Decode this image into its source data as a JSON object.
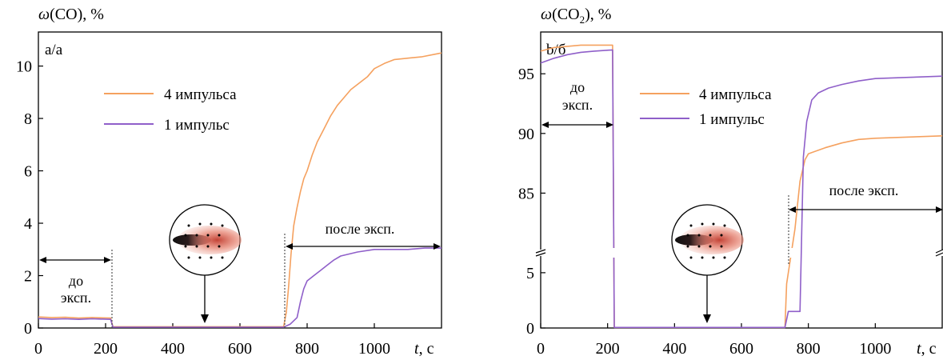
{
  "chart_data": [
    {
      "type": "line",
      "panel_label": "a/a",
      "ylabel_sym": "ω",
      "ylabel_rest": "(CO), %",
      "xlabel_sym": "t",
      "xlabel_rest": ", с",
      "xlim": [
        0,
        1200
      ],
      "ylim": [
        0,
        11.3
      ],
      "xticks": [
        0,
        200,
        400,
        600,
        800,
        1000
      ],
      "yticks": [
        0,
        2,
        4,
        6,
        8,
        10
      ],
      "legend_position": "upper-middle",
      "series": [
        {
          "name": "4 импульса",
          "color": "#f5a15f",
          "x": [
            0,
            40,
            80,
            120,
            160,
            215,
            222,
            300,
            400,
            500,
            600,
            730,
            738,
            745,
            752,
            760,
            770,
            780,
            790,
            800,
            815,
            830,
            850,
            870,
            890,
            910,
            930,
            950,
            980,
            1000,
            1030,
            1060,
            1100,
            1140,
            1180,
            1200
          ],
          "y": [
            0.42,
            0.4,
            0.41,
            0.38,
            0.4,
            0.38,
            0.05,
            0.05,
            0.05,
            0.05,
            0.05,
            0.05,
            0.6,
            1.6,
            2.8,
            3.9,
            4.6,
            5.2,
            5.7,
            6.0,
            6.6,
            7.1,
            7.6,
            8.1,
            8.5,
            8.8,
            9.1,
            9.3,
            9.6,
            9.9,
            10.1,
            10.25,
            10.3,
            10.35,
            10.45,
            10.5
          ]
        },
        {
          "name": "1 импульс",
          "color": "#8f5fc9",
          "x": [
            0,
            40,
            80,
            120,
            160,
            215,
            222,
            300,
            400,
            500,
            600,
            730,
            750,
            770,
            780,
            790,
            800,
            820,
            840,
            860,
            880,
            900,
            950,
            1000,
            1050,
            1100,
            1150,
            1200
          ],
          "y": [
            0.36,
            0.34,
            0.35,
            0.33,
            0.35,
            0.33,
            0.03,
            0.03,
            0.03,
            0.03,
            0.03,
            0.03,
            0.15,
            0.4,
            1.0,
            1.5,
            1.8,
            2.0,
            2.2,
            2.4,
            2.6,
            2.75,
            2.9,
            3.0,
            3.0,
            3.0,
            3.05,
            3.05
          ]
        }
      ],
      "annotations": {
        "before_top": "до",
        "before_bottom": "эксп.",
        "after": "после эксп."
      }
    },
    {
      "type": "line",
      "panel_label": "b/б",
      "ylabel_sym": "ω",
      "ylabel_rest": "(CO",
      "ylabel_sub": "2",
      "ylabel_end": "), %",
      "xlabel_sym": "t",
      "xlabel_rest": ", с",
      "xlim": [
        0,
        1200
      ],
      "broken_axis": true,
      "ylim_lower": [
        0,
        6.8
      ],
      "ylim_upper": [
        80,
        98.5
      ],
      "xticks": [
        0,
        200,
        400,
        600,
        800,
        1000
      ],
      "yticks_lower": [
        0,
        5
      ],
      "yticks_upper": [
        85,
        90,
        95
      ],
      "legend_position": "upper-middle",
      "series": [
        {
          "name": "4 импульса",
          "color": "#f5a15f",
          "x": [
            0,
            40,
            80,
            120,
            160,
            215,
            220,
            300,
            400,
            500,
            600,
            730,
            735,
            745,
            760,
            775,
            790,
            800,
            850,
            900,
            950,
            1000,
            1100,
            1200
          ],
          "y": [
            96.9,
            97.2,
            97.3,
            97.4,
            97.4,
            97.4,
            0.05,
            0.05,
            0.05,
            0.05,
            0.05,
            0.05,
            4.0,
            6.0,
            82.0,
            86.0,
            87.8,
            88.3,
            88.8,
            89.2,
            89.5,
            89.6,
            89.7,
            89.8
          ]
        },
        {
          "name": "1 импульс",
          "color": "#8f5fc9",
          "x": [
            0,
            40,
            80,
            120,
            160,
            215,
            220,
            300,
            400,
            500,
            600,
            730,
            740,
            775,
            785,
            795,
            810,
            830,
            860,
            900,
            950,
            1000,
            1100,
            1200
          ],
          "y": [
            95.9,
            96.3,
            96.6,
            96.8,
            96.9,
            97.0,
            0.05,
            0.05,
            0.05,
            0.05,
            0.05,
            0.05,
            1.5,
            1.5,
            88.0,
            91.0,
            92.8,
            93.4,
            93.8,
            94.1,
            94.4,
            94.6,
            94.7,
            94.8
          ]
        }
      ],
      "annotations": {
        "before_top": "до",
        "before_bottom": "эксп.",
        "after": "после эксп."
      }
    }
  ]
}
